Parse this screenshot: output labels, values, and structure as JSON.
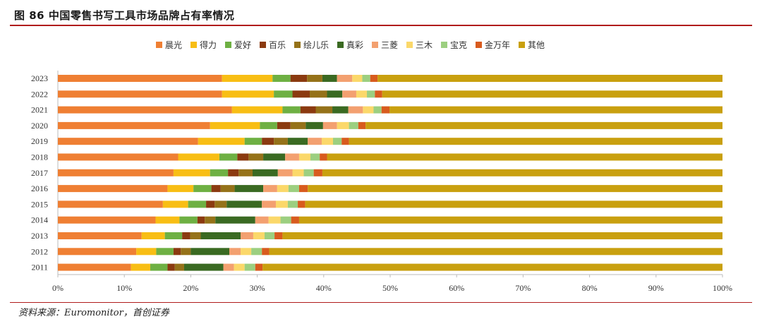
{
  "header": {
    "title": "图 86 中国零售书写工具市场品牌占有率情况"
  },
  "footer": {
    "source": "资料来源：Euromonitor，首创证券"
  },
  "chart_data": {
    "type": "bar",
    "orientation": "horizontal",
    "stacked": true,
    "title": "",
    "xlabel": "",
    "ylabel": "",
    "xlim": [
      0,
      100
    ],
    "x_ticks": [
      "0%",
      "10%",
      "20%",
      "30%",
      "40%",
      "50%",
      "60%",
      "70%",
      "80%",
      "90%",
      "100%"
    ],
    "legend_position": "top",
    "categories": [
      "2023",
      "2022",
      "2021",
      "2020",
      "2019",
      "2018",
      "2017",
      "2016",
      "2015",
      "2014",
      "2013",
      "2012",
      "2011"
    ],
    "series": [
      {
        "name": "晨光",
        "color": "#ef7f33",
        "values": [
          24.7,
          24.7,
          26.2,
          22.9,
          21.1,
          18.1,
          17.4,
          16.5,
          15.8,
          14.7,
          12.6,
          11.8,
          11.0
        ]
      },
      {
        "name": "得力",
        "color": "#f8be14",
        "values": [
          7.6,
          7.8,
          7.6,
          7.5,
          7.0,
          6.2,
          5.5,
          3.9,
          3.8,
          3.6,
          3.5,
          3.0,
          2.9
        ]
      },
      {
        "name": "爱好",
        "color": "#6eb043",
        "values": [
          2.7,
          2.8,
          2.7,
          2.6,
          2.6,
          2.7,
          2.7,
          2.7,
          2.7,
          2.7,
          2.6,
          2.6,
          2.6
        ]
      },
      {
        "name": "百乐",
        "color": "#8b3a10",
        "values": [
          2.5,
          2.6,
          2.3,
          2.0,
          1.8,
          1.7,
          1.6,
          1.4,
          1.3,
          1.1,
          1.2,
          1.1,
          1.1
        ]
      },
      {
        "name": "绘儿乐",
        "color": "#957219",
        "values": [
          2.3,
          2.6,
          2.5,
          2.3,
          2.1,
          2.2,
          2.1,
          2.1,
          1.8,
          1.6,
          1.6,
          1.5,
          1.4
        ]
      },
      {
        "name": "真彩",
        "color": "#3a6a22",
        "values": [
          2.2,
          2.3,
          2.4,
          2.6,
          3.0,
          3.3,
          3.8,
          4.3,
          5.3,
          6.0,
          6.0,
          5.8,
          5.9
        ]
      },
      {
        "name": "三菱",
        "color": "#f3a070",
        "values": [
          2.3,
          2.1,
          2.2,
          2.1,
          2.1,
          2.1,
          2.2,
          2.1,
          2.1,
          2.0,
          1.9,
          1.7,
          1.6
        ]
      },
      {
        "name": "三木",
        "color": "#fbd86a",
        "values": [
          1.5,
          1.6,
          1.6,
          1.8,
          1.7,
          1.7,
          1.7,
          1.7,
          1.8,
          1.8,
          1.7,
          1.6,
          1.6
        ]
      },
      {
        "name": "宝克",
        "color": "#9ccf80",
        "values": [
          1.2,
          1.2,
          1.2,
          1.4,
          1.3,
          1.4,
          1.5,
          1.6,
          1.5,
          1.6,
          1.5,
          1.6,
          1.6
        ]
      },
      {
        "name": "金万年",
        "color": "#d85b1e",
        "values": [
          1.1,
          1.1,
          1.2,
          1.1,
          1.1,
          1.1,
          1.3,
          1.3,
          1.1,
          1.2,
          1.2,
          1.1,
          1.1
        ]
      },
      {
        "name": "其他",
        "color": "#c9a00f",
        "values": [
          51.9,
          51.2,
          50.1,
          53.7,
          56.2,
          59.5,
          60.2,
          62.4,
          62.8,
          63.7,
          66.2,
          68.2,
          69.2
        ]
      }
    ]
  }
}
